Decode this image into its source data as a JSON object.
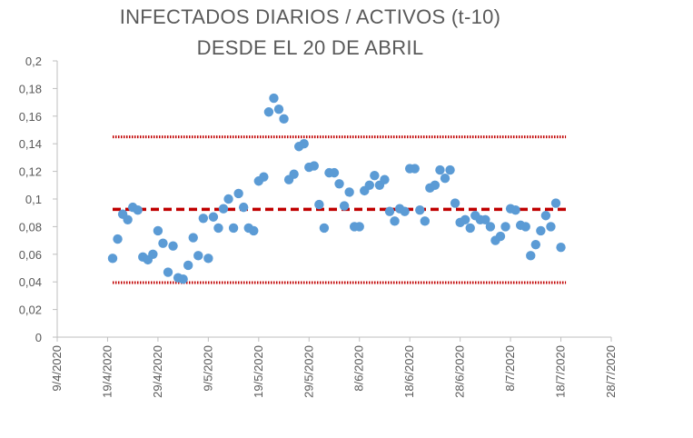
{
  "chart_data": {
    "type": "scatter",
    "title_lines": [
      "INFECTADOS DIARIOS / ACTIVOS (t-10)",
      "DESDE EL 20 DE ABRIL"
    ],
    "xlabel": "",
    "ylabel": "",
    "x_axis": {
      "type": "date",
      "range": [
        "2020-04-09",
        "2020-07-28"
      ],
      "ticks": [
        "2020-04-09",
        "2020-04-19",
        "2020-04-29",
        "2020-05-09",
        "2020-05-19",
        "2020-05-29",
        "2020-06-08",
        "2020-06-18",
        "2020-06-28",
        "2020-07-08",
        "2020-07-18",
        "2020-07-28"
      ],
      "tick_labels": [
        "9/4/2020",
        "19/4/2020",
        "29/4/2020",
        "9/5/2020",
        "19/5/2020",
        "29/5/2020",
        "8/6/2020",
        "18/6/2020",
        "28/6/2020",
        "8/7/2020",
        "18/7/2020",
        "28/7/2020"
      ]
    },
    "y_axis": {
      "range": [
        0,
        0.2
      ],
      "ticks": [
        0,
        0.02,
        0.04,
        0.06,
        0.08,
        0.1,
        0.12,
        0.14,
        0.16,
        0.18,
        0.2
      ],
      "tick_labels": [
        "0",
        "0,02",
        "0,04",
        "0,06",
        "0,08",
        "0,1",
        "0,12",
        "0,14",
        "0,16",
        "0,18",
        "0,2"
      ]
    },
    "grid": false,
    "legend": "none",
    "marker_color": "#5b9bd5",
    "reference_lines": [
      {
        "y": 0.145,
        "style": "dotted",
        "color": "#c00000"
      },
      {
        "y": 0.0925,
        "style": "dashed",
        "color": "#c00000"
      },
      {
        "y": 0.0395,
        "style": "dotted",
        "color": "#c00000"
      }
    ],
    "reference_lines_x_range": [
      "2020-04-20",
      "2020-07-19"
    ],
    "series": [
      {
        "points": [
          [
            "2020-04-20",
            0.057
          ],
          [
            "2020-04-21",
            0.071
          ],
          [
            "2020-04-22",
            0.089
          ],
          [
            "2020-04-23",
            0.085
          ],
          [
            "2020-04-24",
            0.094
          ],
          [
            "2020-04-25",
            0.092
          ],
          [
            "2020-04-26",
            0.058
          ],
          [
            "2020-04-27",
            0.056
          ],
          [
            "2020-04-28",
            0.06
          ],
          [
            "2020-04-29",
            0.077
          ],
          [
            "2020-04-30",
            0.068
          ],
          [
            "2020-05-01",
            0.047
          ],
          [
            "2020-05-02",
            0.066
          ],
          [
            "2020-05-03",
            0.043
          ],
          [
            "2020-05-04",
            0.042
          ],
          [
            "2020-05-05",
            0.052
          ],
          [
            "2020-05-06",
            0.072
          ],
          [
            "2020-05-07",
            0.059
          ],
          [
            "2020-05-08",
            0.086
          ],
          [
            "2020-05-09",
            0.057
          ],
          [
            "2020-05-10",
            0.087
          ],
          [
            "2020-05-11",
            0.079
          ],
          [
            "2020-05-12",
            0.093
          ],
          [
            "2020-05-13",
            0.1
          ],
          [
            "2020-05-14",
            0.079
          ],
          [
            "2020-05-15",
            0.104
          ],
          [
            "2020-05-16",
            0.094
          ],
          [
            "2020-05-17",
            0.079
          ],
          [
            "2020-05-18",
            0.077
          ],
          [
            "2020-05-19",
            0.113
          ],
          [
            "2020-05-20",
            0.116
          ],
          [
            "2020-05-21",
            0.163
          ],
          [
            "2020-05-22",
            0.173
          ],
          [
            "2020-05-23",
            0.165
          ],
          [
            "2020-05-24",
            0.158
          ],
          [
            "2020-05-25",
            0.114
          ],
          [
            "2020-05-26",
            0.118
          ],
          [
            "2020-05-27",
            0.138
          ],
          [
            "2020-05-28",
            0.14
          ],
          [
            "2020-05-29",
            0.123
          ],
          [
            "2020-05-30",
            0.124
          ],
          [
            "2020-05-31",
            0.096
          ],
          [
            "2020-06-01",
            0.079
          ],
          [
            "2020-06-02",
            0.119
          ],
          [
            "2020-06-03",
            0.119
          ],
          [
            "2020-06-04",
            0.111
          ],
          [
            "2020-06-05",
            0.095
          ],
          [
            "2020-06-06",
            0.105
          ],
          [
            "2020-06-07",
            0.08
          ],
          [
            "2020-06-08",
            0.08
          ],
          [
            "2020-06-09",
            0.106
          ],
          [
            "2020-06-10",
            0.11
          ],
          [
            "2020-06-11",
            0.117
          ],
          [
            "2020-06-12",
            0.11
          ],
          [
            "2020-06-13",
            0.114
          ],
          [
            "2020-06-14",
            0.091
          ],
          [
            "2020-06-15",
            0.084
          ],
          [
            "2020-06-16",
            0.093
          ],
          [
            "2020-06-17",
            0.091
          ],
          [
            "2020-06-18",
            0.122
          ],
          [
            "2020-06-19",
            0.122
          ],
          [
            "2020-06-20",
            0.092
          ],
          [
            "2020-06-21",
            0.084
          ],
          [
            "2020-06-22",
            0.108
          ],
          [
            "2020-06-23",
            0.11
          ],
          [
            "2020-06-24",
            0.121
          ],
          [
            "2020-06-25",
            0.115
          ],
          [
            "2020-06-26",
            0.121
          ],
          [
            "2020-06-27",
            0.097
          ],
          [
            "2020-06-28",
            0.083
          ],
          [
            "2020-06-29",
            0.085
          ],
          [
            "2020-06-30",
            0.079
          ],
          [
            "2020-07-01",
            0.088
          ],
          [
            "2020-07-02",
            0.085
          ],
          [
            "2020-07-03",
            0.085
          ],
          [
            "2020-07-04",
            0.08
          ],
          [
            "2020-07-05",
            0.07
          ],
          [
            "2020-07-06",
            0.073
          ],
          [
            "2020-07-07",
            0.08
          ],
          [
            "2020-07-08",
            0.093
          ],
          [
            "2020-07-09",
            0.092
          ],
          [
            "2020-07-10",
            0.081
          ],
          [
            "2020-07-11",
            0.08
          ],
          [
            "2020-07-12",
            0.059
          ],
          [
            "2020-07-13",
            0.067
          ],
          [
            "2020-07-14",
            0.077
          ],
          [
            "2020-07-15",
            0.088
          ],
          [
            "2020-07-16",
            0.08
          ],
          [
            "2020-07-17",
            0.097
          ],
          [
            "2020-07-18",
            0.065
          ]
        ]
      }
    ]
  }
}
